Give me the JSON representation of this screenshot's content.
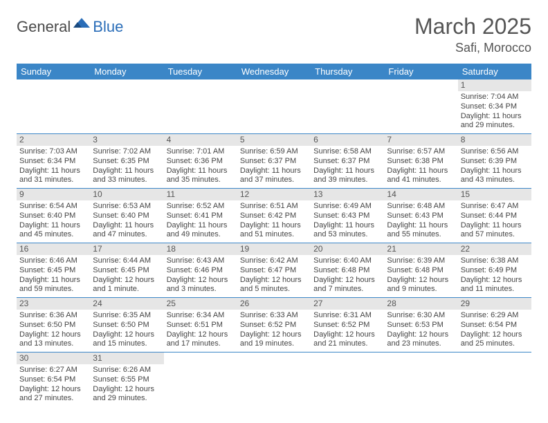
{
  "logo": {
    "general": "General",
    "blue": "Blue"
  },
  "title": "March 2025",
  "location": "Safi, Morocco",
  "header_color": "#3b86c7",
  "daynum_bg": "#e6e6e6",
  "border_color": "#3b86c7",
  "weekdays": [
    "Sunday",
    "Monday",
    "Tuesday",
    "Wednesday",
    "Thursday",
    "Friday",
    "Saturday"
  ],
  "weeks": [
    [
      null,
      null,
      null,
      null,
      null,
      null,
      {
        "n": "1",
        "sr": "Sunrise: 7:04 AM",
        "ss": "Sunset: 6:34 PM",
        "dl": "Daylight: 11 hours and 29 minutes."
      }
    ],
    [
      {
        "n": "2",
        "sr": "Sunrise: 7:03 AM",
        "ss": "Sunset: 6:34 PM",
        "dl": "Daylight: 11 hours and 31 minutes."
      },
      {
        "n": "3",
        "sr": "Sunrise: 7:02 AM",
        "ss": "Sunset: 6:35 PM",
        "dl": "Daylight: 11 hours and 33 minutes."
      },
      {
        "n": "4",
        "sr": "Sunrise: 7:01 AM",
        "ss": "Sunset: 6:36 PM",
        "dl": "Daylight: 11 hours and 35 minutes."
      },
      {
        "n": "5",
        "sr": "Sunrise: 6:59 AM",
        "ss": "Sunset: 6:37 PM",
        "dl": "Daylight: 11 hours and 37 minutes."
      },
      {
        "n": "6",
        "sr": "Sunrise: 6:58 AM",
        "ss": "Sunset: 6:37 PM",
        "dl": "Daylight: 11 hours and 39 minutes."
      },
      {
        "n": "7",
        "sr": "Sunrise: 6:57 AM",
        "ss": "Sunset: 6:38 PM",
        "dl": "Daylight: 11 hours and 41 minutes."
      },
      {
        "n": "8",
        "sr": "Sunrise: 6:56 AM",
        "ss": "Sunset: 6:39 PM",
        "dl": "Daylight: 11 hours and 43 minutes."
      }
    ],
    [
      {
        "n": "9",
        "sr": "Sunrise: 6:54 AM",
        "ss": "Sunset: 6:40 PM",
        "dl": "Daylight: 11 hours and 45 minutes."
      },
      {
        "n": "10",
        "sr": "Sunrise: 6:53 AM",
        "ss": "Sunset: 6:40 PM",
        "dl": "Daylight: 11 hours and 47 minutes."
      },
      {
        "n": "11",
        "sr": "Sunrise: 6:52 AM",
        "ss": "Sunset: 6:41 PM",
        "dl": "Daylight: 11 hours and 49 minutes."
      },
      {
        "n": "12",
        "sr": "Sunrise: 6:51 AM",
        "ss": "Sunset: 6:42 PM",
        "dl": "Daylight: 11 hours and 51 minutes."
      },
      {
        "n": "13",
        "sr": "Sunrise: 6:49 AM",
        "ss": "Sunset: 6:43 PM",
        "dl": "Daylight: 11 hours and 53 minutes."
      },
      {
        "n": "14",
        "sr": "Sunrise: 6:48 AM",
        "ss": "Sunset: 6:43 PM",
        "dl": "Daylight: 11 hours and 55 minutes."
      },
      {
        "n": "15",
        "sr": "Sunrise: 6:47 AM",
        "ss": "Sunset: 6:44 PM",
        "dl": "Daylight: 11 hours and 57 minutes."
      }
    ],
    [
      {
        "n": "16",
        "sr": "Sunrise: 6:46 AM",
        "ss": "Sunset: 6:45 PM",
        "dl": "Daylight: 11 hours and 59 minutes."
      },
      {
        "n": "17",
        "sr": "Sunrise: 6:44 AM",
        "ss": "Sunset: 6:45 PM",
        "dl": "Daylight: 12 hours and 1 minute."
      },
      {
        "n": "18",
        "sr": "Sunrise: 6:43 AM",
        "ss": "Sunset: 6:46 PM",
        "dl": "Daylight: 12 hours and 3 minutes."
      },
      {
        "n": "19",
        "sr": "Sunrise: 6:42 AM",
        "ss": "Sunset: 6:47 PM",
        "dl": "Daylight: 12 hours and 5 minutes."
      },
      {
        "n": "20",
        "sr": "Sunrise: 6:40 AM",
        "ss": "Sunset: 6:48 PM",
        "dl": "Daylight: 12 hours and 7 minutes."
      },
      {
        "n": "21",
        "sr": "Sunrise: 6:39 AM",
        "ss": "Sunset: 6:48 PM",
        "dl": "Daylight: 12 hours and 9 minutes."
      },
      {
        "n": "22",
        "sr": "Sunrise: 6:38 AM",
        "ss": "Sunset: 6:49 PM",
        "dl": "Daylight: 12 hours and 11 minutes."
      }
    ],
    [
      {
        "n": "23",
        "sr": "Sunrise: 6:36 AM",
        "ss": "Sunset: 6:50 PM",
        "dl": "Daylight: 12 hours and 13 minutes."
      },
      {
        "n": "24",
        "sr": "Sunrise: 6:35 AM",
        "ss": "Sunset: 6:50 PM",
        "dl": "Daylight: 12 hours and 15 minutes."
      },
      {
        "n": "25",
        "sr": "Sunrise: 6:34 AM",
        "ss": "Sunset: 6:51 PM",
        "dl": "Daylight: 12 hours and 17 minutes."
      },
      {
        "n": "26",
        "sr": "Sunrise: 6:33 AM",
        "ss": "Sunset: 6:52 PM",
        "dl": "Daylight: 12 hours and 19 minutes."
      },
      {
        "n": "27",
        "sr": "Sunrise: 6:31 AM",
        "ss": "Sunset: 6:52 PM",
        "dl": "Daylight: 12 hours and 21 minutes."
      },
      {
        "n": "28",
        "sr": "Sunrise: 6:30 AM",
        "ss": "Sunset: 6:53 PM",
        "dl": "Daylight: 12 hours and 23 minutes."
      },
      {
        "n": "29",
        "sr": "Sunrise: 6:29 AM",
        "ss": "Sunset: 6:54 PM",
        "dl": "Daylight: 12 hours and 25 minutes."
      }
    ],
    [
      {
        "n": "30",
        "sr": "Sunrise: 6:27 AM",
        "ss": "Sunset: 6:54 PM",
        "dl": "Daylight: 12 hours and 27 minutes."
      },
      {
        "n": "31",
        "sr": "Sunrise: 6:26 AM",
        "ss": "Sunset: 6:55 PM",
        "dl": "Daylight: 12 hours and 29 minutes."
      },
      null,
      null,
      null,
      null,
      null
    ]
  ]
}
